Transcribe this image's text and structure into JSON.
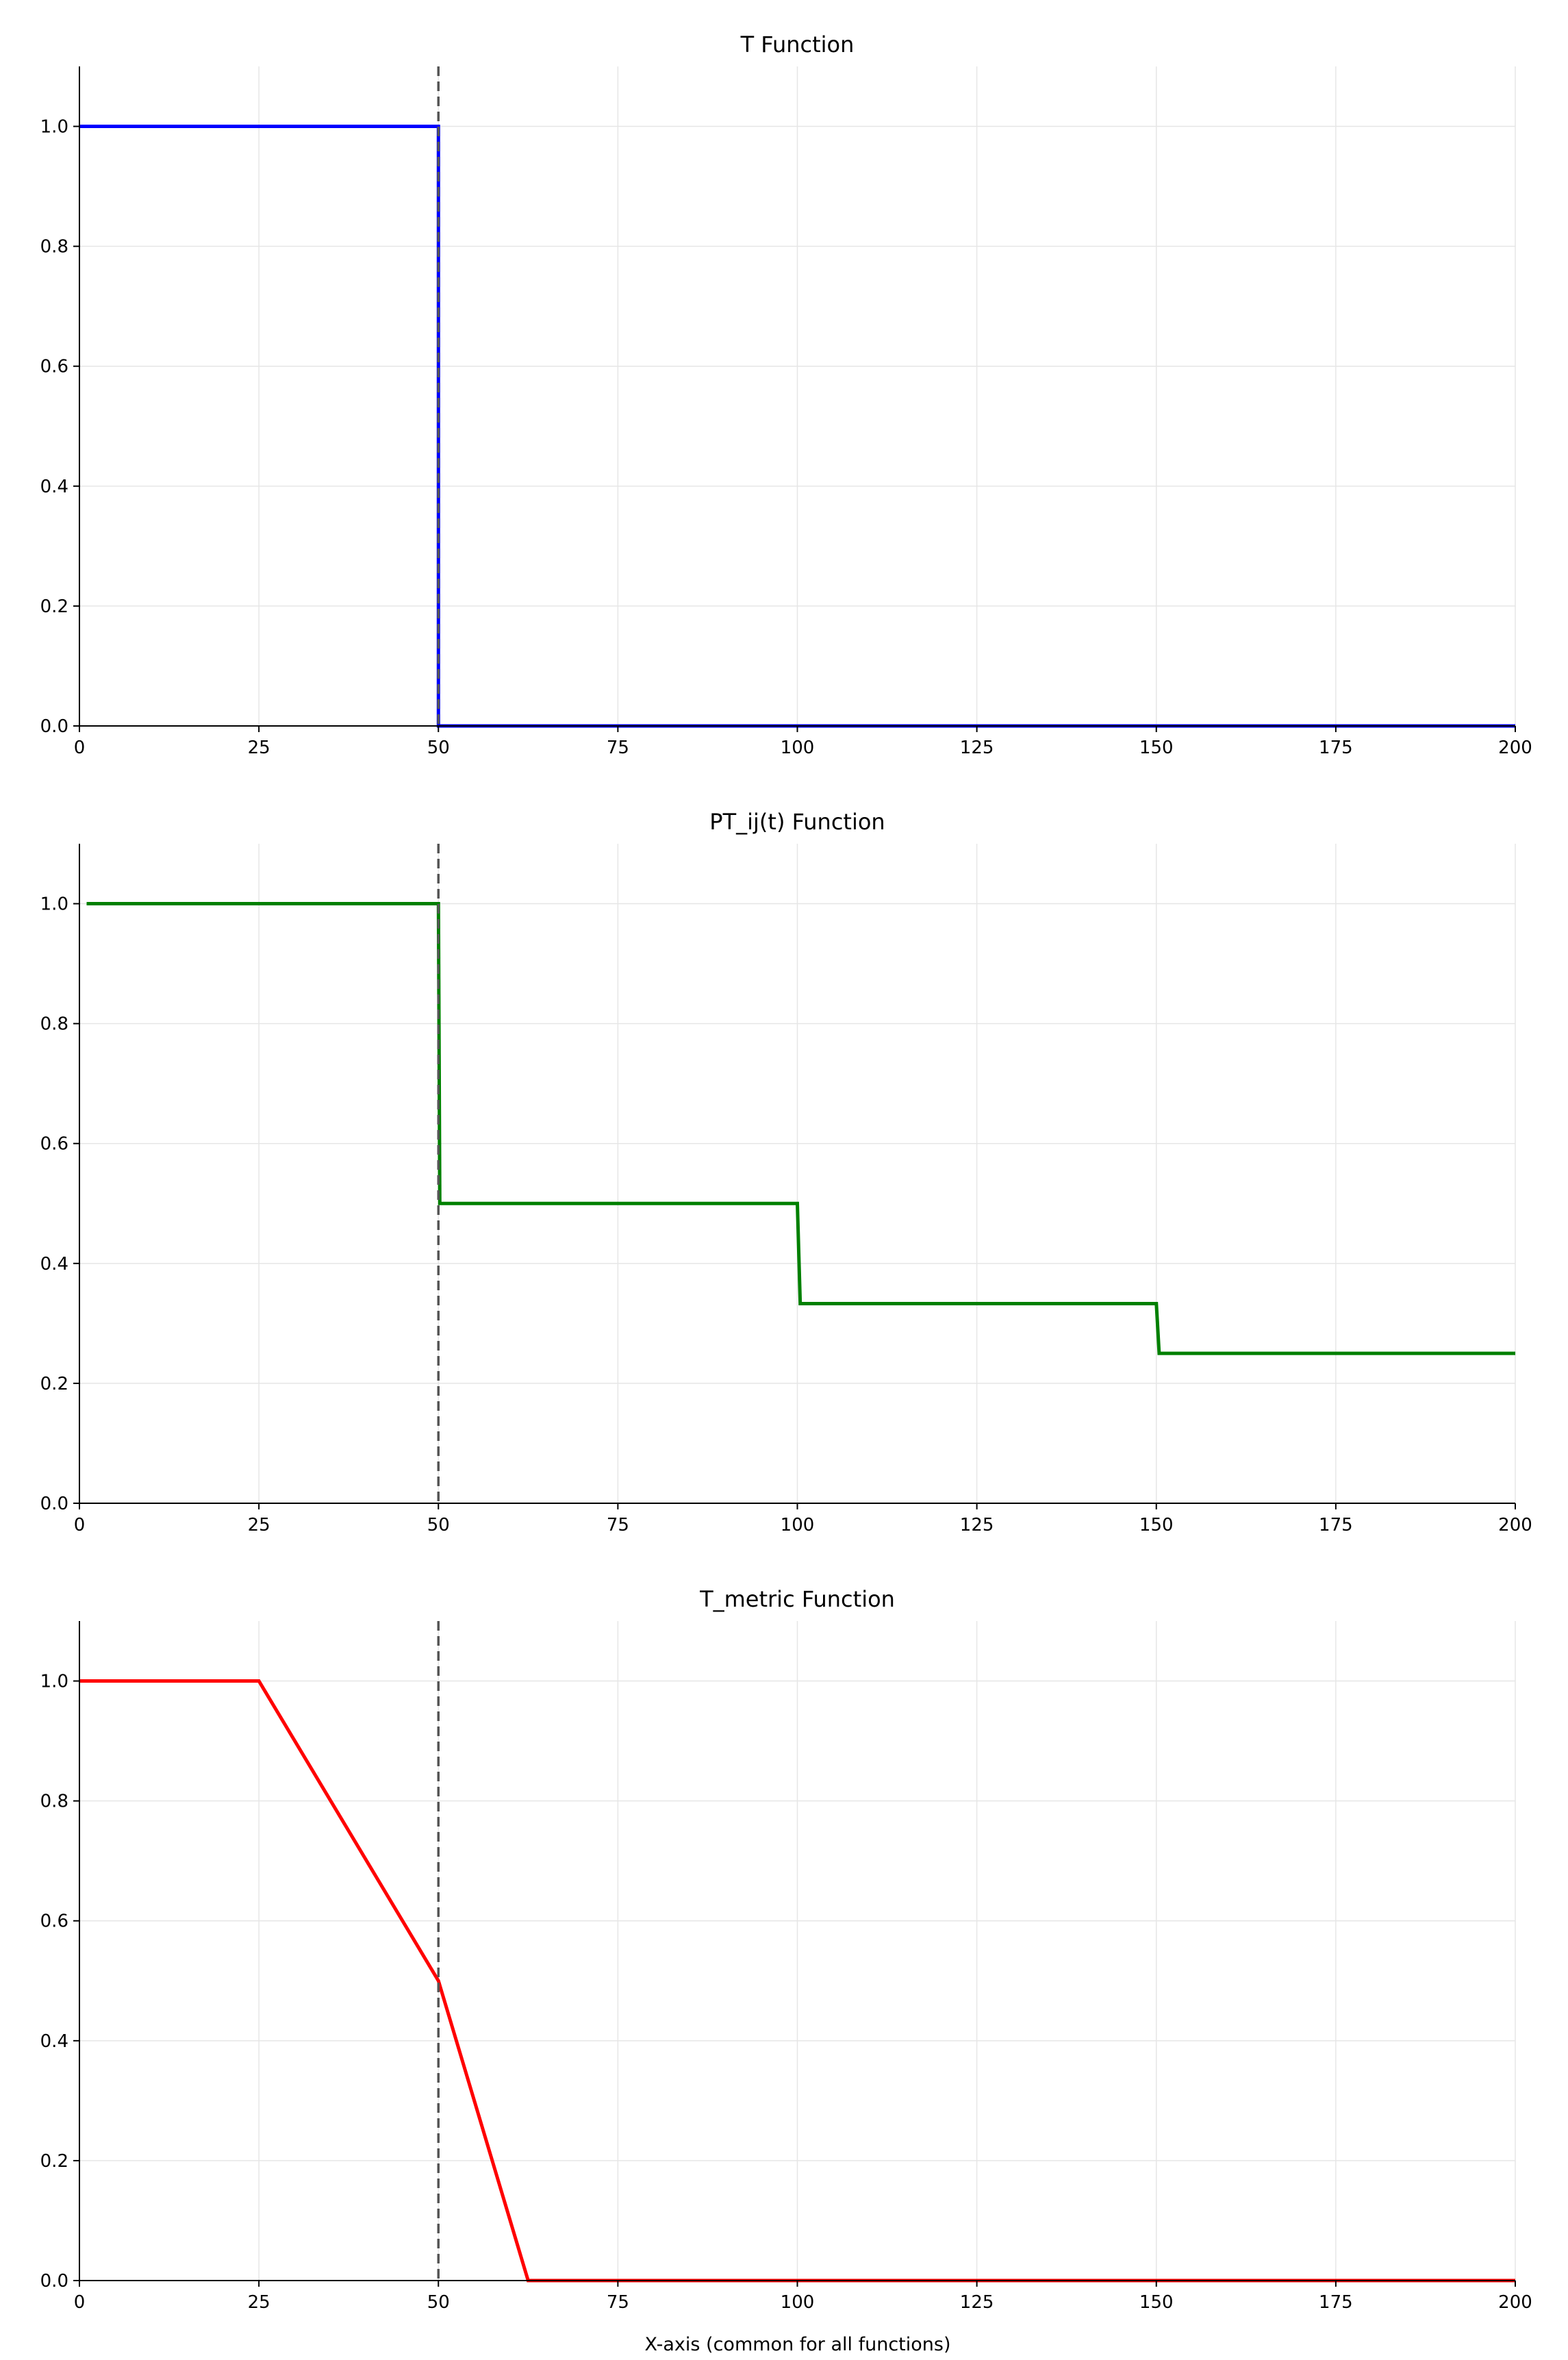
{
  "figure": {
    "xlabel": "X-axis (common for all functions)"
  },
  "chart_data": [
    {
      "type": "line",
      "title": "T Function",
      "xlim": [
        0,
        200
      ],
      "ylim": [
        0,
        1.1
      ],
      "x_ticks": [
        0,
        25,
        50,
        75,
        100,
        125,
        150,
        175,
        200
      ],
      "y_ticks": [
        0.0,
        0.2,
        0.4,
        0.6,
        0.8,
        1.0
      ],
      "y_tick_labels": [
        "0.0",
        "0.2",
        "0.4",
        "0.6",
        "0.8",
        "1.0"
      ],
      "grid": true,
      "reference_line_x": 50,
      "series": [
        {
          "color": "#0000ff",
          "x": [
            0,
            50,
            50,
            200
          ],
          "y": [
            1.0,
            1.0,
            0.0,
            0.0
          ]
        }
      ]
    },
    {
      "type": "line",
      "title": "PT_ij(t) Function",
      "xlim": [
        0,
        200
      ],
      "ylim": [
        0,
        1.1
      ],
      "x_ticks": [
        0,
        25,
        50,
        75,
        100,
        125,
        150,
        175,
        200
      ],
      "y_ticks": [
        0.0,
        0.2,
        0.4,
        0.6,
        0.8,
        1.0
      ],
      "y_tick_labels": [
        "0.0",
        "0.2",
        "0.4",
        "0.6",
        "0.8",
        "1.0"
      ],
      "grid": true,
      "reference_line_x": 50,
      "series": [
        {
          "color": "#008000",
          "x": [
            1,
            50,
            50.2,
            100,
            100.4,
            150,
            150.4,
            200
          ],
          "y": [
            1.0,
            1.0,
            0.5,
            0.5,
            0.333,
            0.333,
            0.25,
            0.25
          ]
        }
      ]
    },
    {
      "type": "line",
      "title": "T_metric Function",
      "xlim": [
        0,
        200
      ],
      "ylim": [
        0,
        1.1
      ],
      "x_ticks": [
        0,
        25,
        50,
        75,
        100,
        125,
        150,
        175,
        200
      ],
      "y_ticks": [
        0.0,
        0.2,
        0.4,
        0.6,
        0.8,
        1.0
      ],
      "y_tick_labels": [
        "0.0",
        "0.2",
        "0.4",
        "0.6",
        "0.8",
        "1.0"
      ],
      "grid": true,
      "reference_line_x": 50,
      "series": [
        {
          "color": "#ff0000",
          "x": [
            0,
            25,
            50,
            62.5,
            200
          ],
          "y": [
            1.0,
            1.0,
            0.5,
            0.0,
            0.0
          ]
        }
      ]
    }
  ]
}
